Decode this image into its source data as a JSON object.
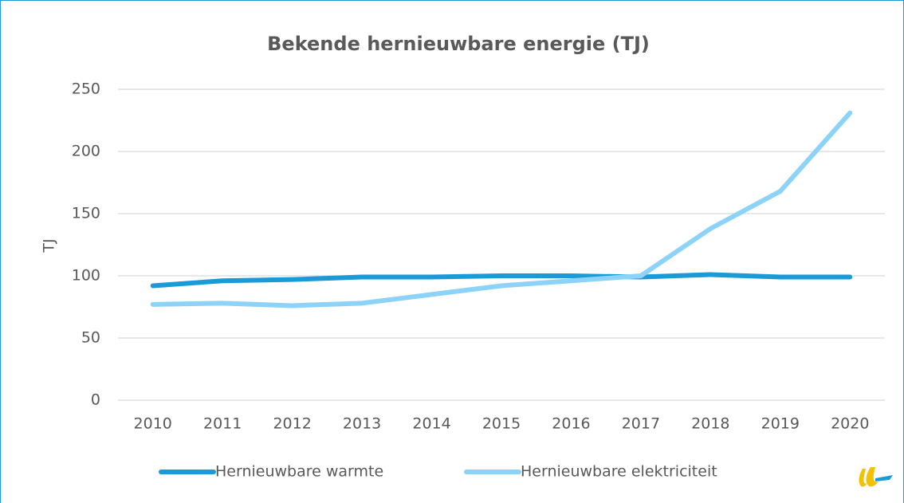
{
  "chart_data": {
    "type": "line",
    "title": "Bekende hernieuwbare energie (TJ)",
    "y_label": "TJ",
    "categories": [
      "2010",
      "2011",
      "2012",
      "2013",
      "2014",
      "2015",
      "2016",
      "2017",
      "2018",
      "2019",
      "2020"
    ],
    "series": [
      {
        "name": "Hernieuwbare warmte",
        "color": "#1a9bd7",
        "values": [
          92,
          96,
          97,
          99,
          99,
          100,
          100,
          99,
          101,
          99,
          99
        ]
      },
      {
        "name": "Hernieuwbare elektriciteit",
        "color": "#8dd3f8",
        "values": [
          77,
          78,
          76,
          78,
          85,
          92,
          96,
          100,
          138,
          168,
          231
        ]
      }
    ],
    "ylim": [
      0,
      250
    ],
    "yticks": [
      0,
      50,
      100,
      150,
      200,
      250
    ],
    "grid": true,
    "legend": "bottom"
  }
}
